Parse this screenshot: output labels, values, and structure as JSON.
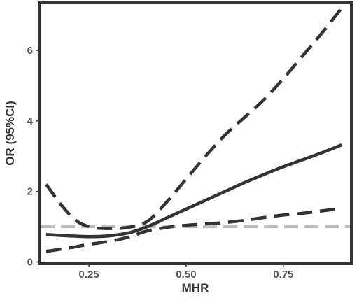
{
  "chart_data": {
    "type": "line",
    "xlabel": "MHR",
    "ylabel": "OR (95%CI)",
    "xlim": [
      0.122,
      0.925
    ],
    "ylim": [
      -0.05,
      7.35
    ],
    "x_ticks": [
      0.25,
      0.5,
      0.75
    ],
    "x_tick_labels": [
      "0.25",
      "0.50",
      "0.75"
    ],
    "y_ticks": [
      0,
      2,
      4,
      6
    ],
    "y_tick_labels": [
      "0",
      "2",
      "4",
      "6"
    ],
    "grid": false,
    "reference_line": {
      "y": 1,
      "style": "dashed",
      "color": "#bbbbbb"
    },
    "series": [
      {
        "role": "estimate",
        "style": "solid",
        "color": "#333333",
        "x": [
          0.14,
          0.2,
          0.25,
          0.3,
          0.35,
          0.4,
          0.45,
          0.5,
          0.55,
          0.6,
          0.65,
          0.7,
          0.75,
          0.8,
          0.85,
          0.9
        ],
        "y": [
          0.78,
          0.74,
          0.72,
          0.74,
          0.82,
          1.0,
          1.25,
          1.5,
          1.75,
          2.0,
          2.25,
          2.48,
          2.7,
          2.9,
          3.1,
          3.32
        ]
      },
      {
        "role": "upper-ci",
        "style": "dashed",
        "color": "#333333",
        "x": [
          0.14,
          0.18,
          0.22,
          0.26,
          0.3,
          0.35,
          0.4,
          0.45,
          0.5,
          0.55,
          0.6,
          0.65,
          0.7,
          0.75,
          0.8,
          0.85,
          0.9
        ],
        "y": [
          2.2,
          1.6,
          1.15,
          0.98,
          0.95,
          0.98,
          1.15,
          1.7,
          2.35,
          3.0,
          3.6,
          4.1,
          4.6,
          5.2,
          5.85,
          6.5,
          7.2
        ]
      },
      {
        "role": "lower-ci",
        "style": "dashed",
        "color": "#333333",
        "x": [
          0.14,
          0.2,
          0.25,
          0.3,
          0.35,
          0.4,
          0.45,
          0.5,
          0.55,
          0.6,
          0.65,
          0.7,
          0.75,
          0.8,
          0.85,
          0.9
        ],
        "y": [
          0.3,
          0.4,
          0.5,
          0.58,
          0.7,
          0.88,
          0.98,
          1.04,
          1.08,
          1.12,
          1.18,
          1.26,
          1.33,
          1.38,
          1.45,
          1.52
        ]
      }
    ]
  }
}
